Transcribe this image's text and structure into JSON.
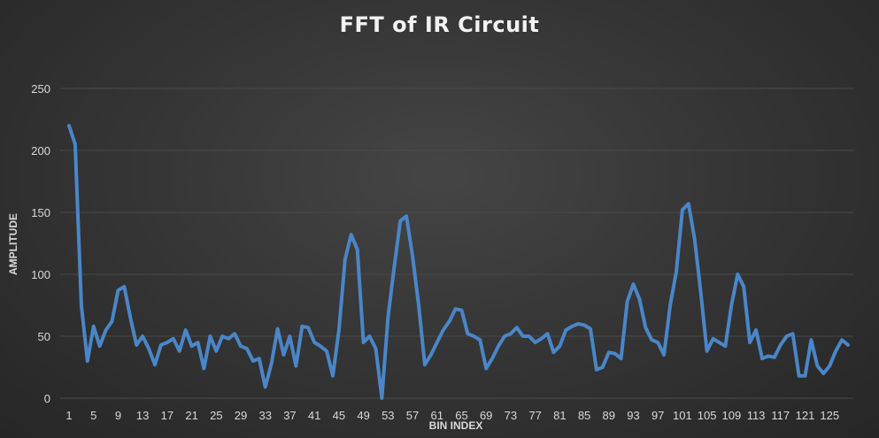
{
  "chart_data": {
    "type": "line",
    "title": "FFT of IR Circuit",
    "xlabel": "BIN INDEX",
    "ylabel": "AMPLITUDE",
    "ylim": [
      0,
      250
    ],
    "yticks": [
      0,
      50,
      100,
      150,
      200,
      250
    ],
    "xtick_labels": [
      "1",
      "5",
      "9",
      "13",
      "17",
      "21",
      "25",
      "29",
      "33",
      "37",
      "41",
      "45",
      "49",
      "53",
      "57",
      "61",
      "65",
      "69",
      "73",
      "77",
      "81",
      "85",
      "89",
      "93",
      "97",
      "101",
      "105",
      "109",
      "113",
      "117",
      "121",
      "125"
    ],
    "grid": "horizontal",
    "legend": "none",
    "line_color": "#4a86c8",
    "x": [
      1,
      2,
      3,
      4,
      5,
      6,
      7,
      8,
      9,
      10,
      11,
      12,
      13,
      14,
      15,
      16,
      17,
      18,
      19,
      20,
      21,
      22,
      23,
      24,
      25,
      26,
      27,
      28,
      29,
      30,
      31,
      32,
      33,
      34,
      35,
      36,
      37,
      38,
      39,
      40,
      41,
      42,
      43,
      44,
      45,
      46,
      47,
      48,
      49,
      50,
      51,
      52,
      53,
      54,
      55,
      56,
      57,
      58,
      59,
      60,
      61,
      62,
      63,
      64,
      65,
      66,
      67,
      68,
      69,
      70,
      71,
      72,
      73,
      74,
      75,
      76,
      77,
      78,
      79,
      80,
      81,
      82,
      83,
      84,
      85,
      86,
      87,
      88,
      89,
      90,
      91,
      92,
      93,
      94,
      95,
      96,
      97,
      98,
      99,
      100,
      101,
      102,
      103,
      104,
      105,
      106,
      107,
      108,
      109,
      110,
      111,
      112,
      113,
      114,
      115,
      116,
      117,
      118,
      119,
      120,
      121,
      122,
      123,
      124,
      125,
      126,
      127,
      128
    ],
    "values": [
      220,
      205,
      75,
      30,
      58,
      42,
      55,
      62,
      87,
      90,
      65,
      43,
      50,
      40,
      27,
      43,
      45,
      48,
      38,
      55,
      42,
      45,
      24,
      50,
      38,
      50,
      48,
      52,
      42,
      40,
      30,
      32,
      9,
      28,
      56,
      35,
      50,
      26,
      58,
      57,
      45,
      42,
      38,
      18,
      55,
      112,
      132,
      120,
      45,
      50,
      40,
      0,
      65,
      105,
      143,
      147,
      115,
      75,
      27,
      35,
      45,
      55,
      62,
      72,
      71,
      52,
      50,
      47,
      24,
      32,
      42,
      50,
      52,
      57,
      50,
      50,
      45,
      48,
      52,
      37,
      42,
      55,
      58,
      60,
      59,
      56,
      23,
      25,
      37,
      36,
      32,
      78,
      92,
      80,
      57,
      47,
      45,
      35,
      75,
      102,
      152,
      157,
      128,
      85,
      38,
      48,
      45,
      42,
      75,
      100,
      90,
      45,
      55,
      32,
      34,
      33,
      43,
      50,
      52,
      18,
      18,
      47,
      26,
      20,
      26,
      38,
      47,
      43
    ]
  }
}
